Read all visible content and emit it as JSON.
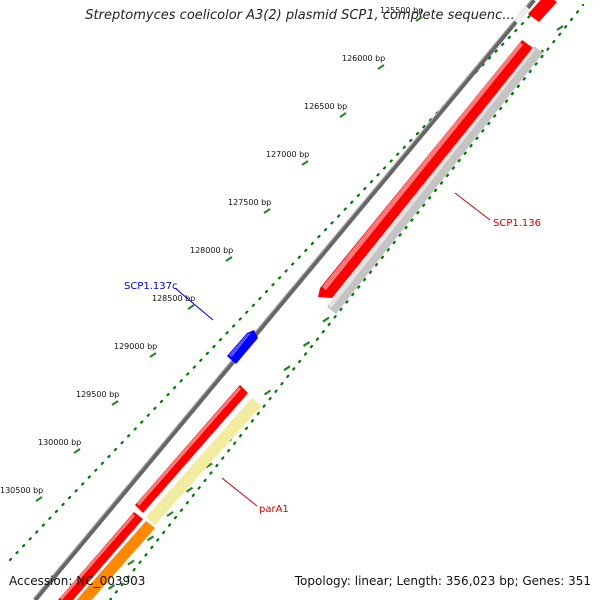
{
  "title": "Streptomyces coelicolor A3(2) plasmid SCP1, complete sequenc...",
  "footer": {
    "accession": "Accession: NC_003903",
    "summary": "Topology: linear; Length: 356,023 bp; Genes: 351"
  },
  "ruler": {
    "ticks": [
      {
        "label": "125500 bp"
      },
      {
        "label": "126000 bp"
      },
      {
        "label": "126500 bp"
      },
      {
        "label": "127000 bp"
      },
      {
        "label": "127500 bp"
      },
      {
        "label": "128000 bp"
      },
      {
        "label": "128500 bp"
      },
      {
        "label": "129000 bp"
      },
      {
        "label": "129500 bp"
      },
      {
        "label": "130000 bp"
      },
      {
        "label": "130500 bp"
      }
    ]
  },
  "genes": {
    "scp1_136": {
      "label": "SCP1.136",
      "color": "#cc0000"
    },
    "scp1_137c": {
      "label": "SCP1.137c",
      "color": "#0000cc"
    },
    "para1": {
      "label": "parA1",
      "color": "#cc0000"
    }
  },
  "colors": {
    "backbone": "#777777",
    "gene_red": "#ff0000",
    "gene_grey": "#c4c4c4",
    "gene_blue": "#0000ff",
    "gene_yellow": "#f2eca0",
    "gene_orange": "#ff8800",
    "ruler_dots": "#007700",
    "ruler_ticks": "#228822"
  }
}
